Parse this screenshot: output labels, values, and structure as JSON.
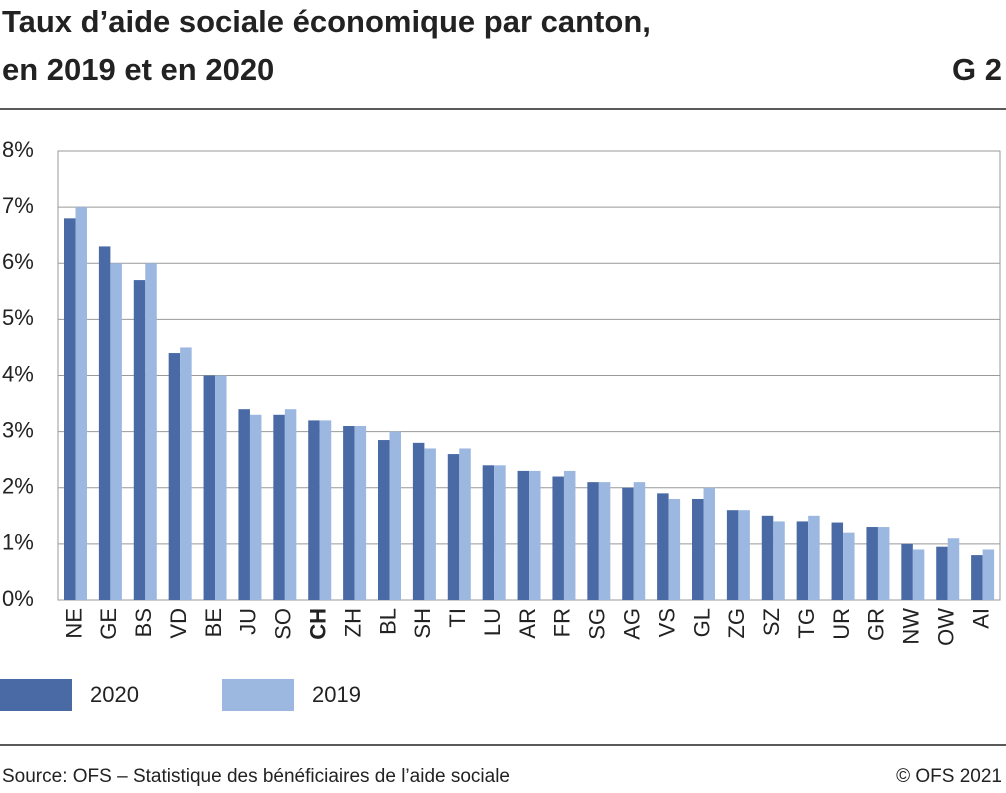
{
  "chart_data": {
    "type": "bar",
    "title": [
      "Taux d’aide sociale économique par canton,",
      "en 2019 et en 2020"
    ],
    "chart_id": "G 2",
    "source": "Source: OFS – Statistique des bénéficiaires de l’aide sociale",
    "copyright": "© OFS 2021",
    "categories": [
      "NE",
      "GE",
      "BS",
      "VD",
      "BE",
      "JU",
      "SO",
      "CH",
      "ZH",
      "BL",
      "SH",
      "TI",
      "LU",
      "AR",
      "FR",
      "SG",
      "AG",
      "VS",
      "GL",
      "ZG",
      "SZ",
      "TG",
      "UR",
      "GR",
      "NW",
      "OW",
      "AI"
    ],
    "bold_category": "CH",
    "series": [
      {
        "name": "2020",
        "color": "#4a6aa5",
        "values": [
          6.8,
          6.3,
          5.7,
          4.4,
          4.0,
          3.4,
          3.3,
          3.2,
          3.1,
          2.85,
          2.8,
          2.6,
          2.4,
          2.3,
          2.2,
          2.1,
          2.0,
          1.9,
          1.8,
          1.6,
          1.5,
          1.4,
          1.38,
          1.3,
          1.0,
          0.95,
          0.8
        ]
      },
      {
        "name": "2019",
        "color": "#9cb8e0",
        "values": [
          7.0,
          6.0,
          6.0,
          4.5,
          4.0,
          3.3,
          3.4,
          3.2,
          3.1,
          3.0,
          2.7,
          2.7,
          2.4,
          2.3,
          2.3,
          2.1,
          2.1,
          1.8,
          2.0,
          1.6,
          1.4,
          1.5,
          1.2,
          1.3,
          0.9,
          1.1,
          0.9
        ]
      }
    ],
    "ylim": [
      0,
      8
    ],
    "yticks": [
      {
        "value": 0,
        "label": "0%"
      },
      {
        "value": 1,
        "label": "1%"
      },
      {
        "value": 2,
        "label": "2%"
      },
      {
        "value": 3,
        "label": "3%"
      },
      {
        "value": 4,
        "label": "4%"
      },
      {
        "value": 5,
        "label": "5%"
      },
      {
        "value": 6,
        "label": "6%"
      },
      {
        "value": 7,
        "label": "7%"
      },
      {
        "value": 8,
        "label": "8%"
      }
    ],
    "grid": true
  }
}
